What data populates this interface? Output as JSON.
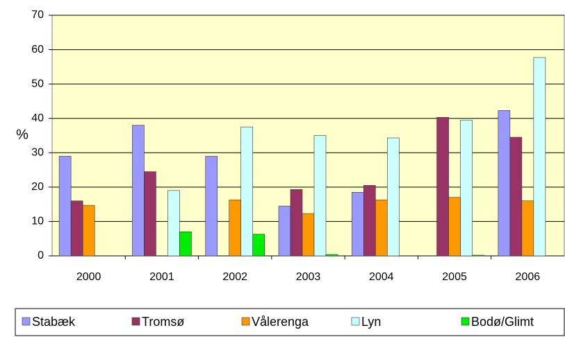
{
  "chart_data": {
    "type": "bar",
    "ylabel": "%",
    "categories": [
      "2000",
      "2001",
      "2002",
      "2003",
      "2004",
      "2005",
      "2006"
    ],
    "series": [
      {
        "name": "Stabæk",
        "color": "#9999ff",
        "values": [
          29,
          38,
          29,
          14.5,
          18.5,
          null,
          42.3
        ]
      },
      {
        "name": "Tromsø",
        "color": "#993366",
        "values": [
          16,
          24.5,
          null,
          19.3,
          20.5,
          40.3,
          34.5
        ]
      },
      {
        "name": "Vålerenga",
        "color": "#ff9900",
        "values": [
          14.7,
          null,
          16.3,
          12.3,
          16.3,
          17,
          16
        ]
      },
      {
        "name": "Lyn",
        "color": "#ccffff",
        "values": [
          null,
          19,
          37.5,
          35,
          34.3,
          39.5,
          57.7
        ]
      },
      {
        "name": "Bodø/Glimt",
        "color": "#00ee00",
        "values": [
          null,
          7,
          6.3,
          0.4,
          null,
          0.2,
          null
        ]
      }
    ],
    "ylim": [
      0,
      70
    ],
    "yticks": [
      0,
      10,
      20,
      30,
      40,
      50,
      60,
      70
    ],
    "grid": true,
    "legend": "bottom"
  }
}
